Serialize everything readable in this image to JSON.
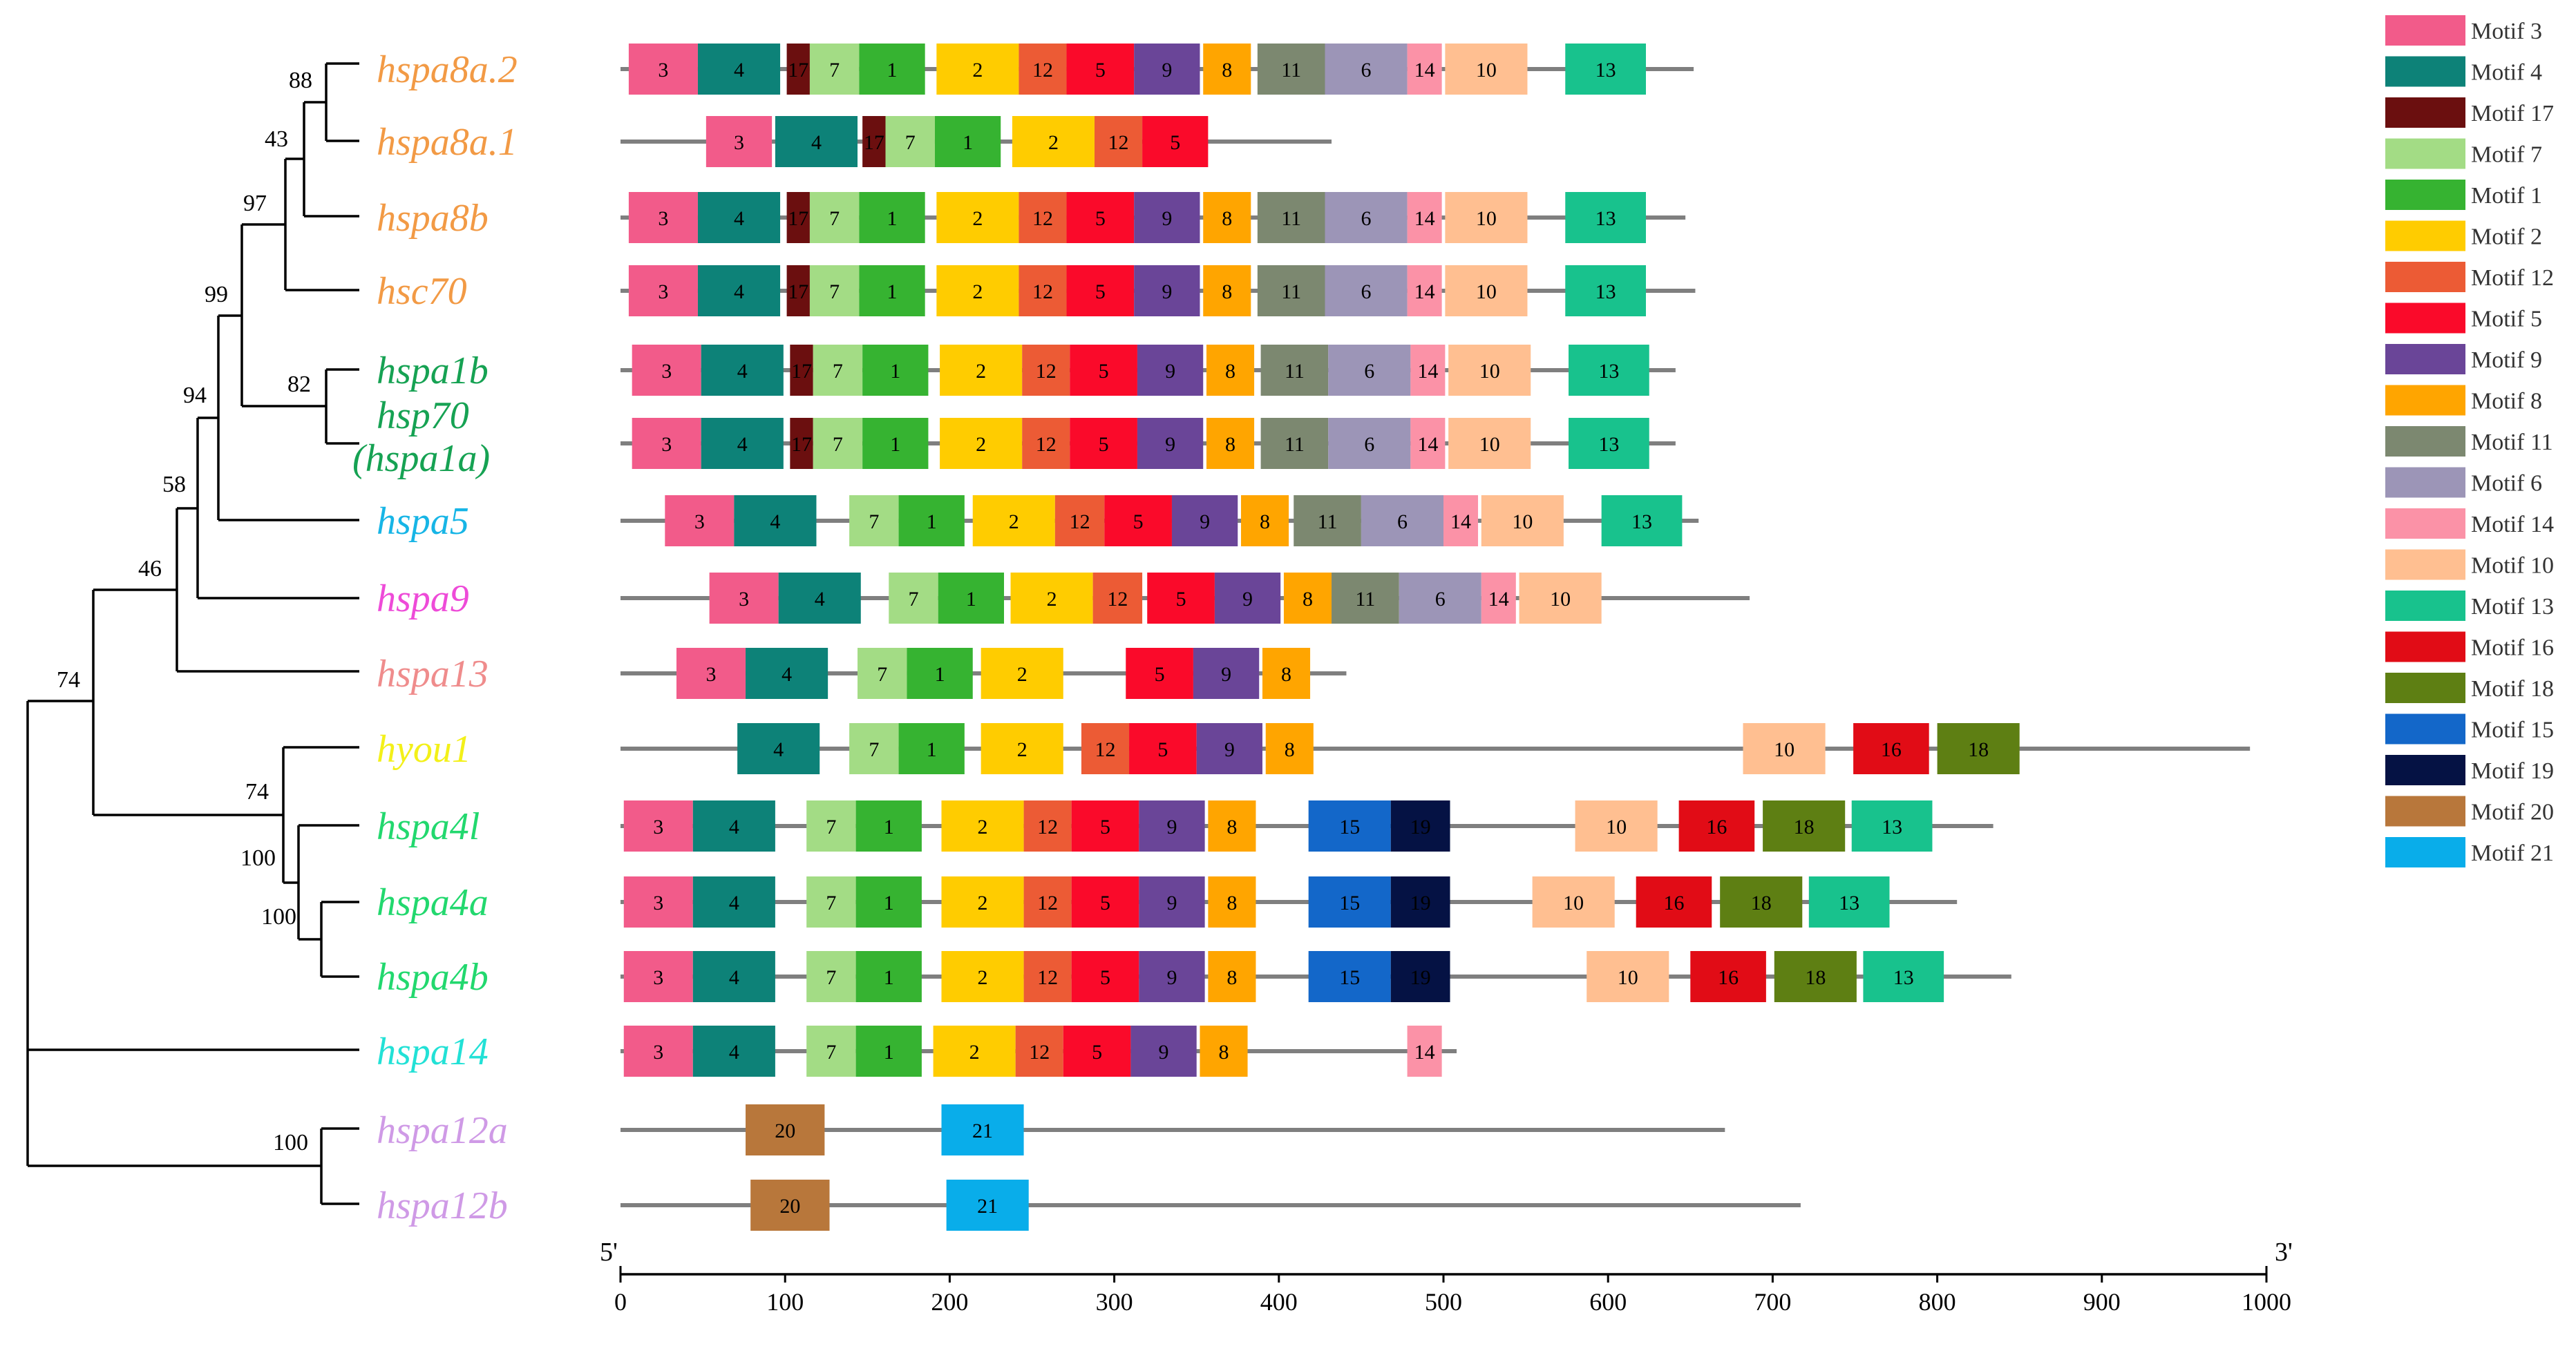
{
  "colors": {
    "Motif 3": "#F25B8A",
    "Motif 4": "#0D8278",
    "Motif 17": "#6B0F0F",
    "Motif 7": "#A3DC85",
    "Motif 1": "#36B331",
    "Motif 2": "#FFCC00",
    "Motif 12": "#EC5B35",
    "Motif 5": "#FA0A2A",
    "Motif 9": "#6A4598",
    "Motif 8": "#FFA500",
    "Motif 11": "#7C8870",
    "Motif 6": "#9C95B7",
    "Motif 14": "#FB92A7",
    "Motif 10": "#FFBF91",
    "Motif 13": "#18C28D",
    "Motif 16": "#E10C16",
    "Motif 18": "#5E7F13",
    "Motif 15": "#1367C9",
    "Motif 19": "#051244",
    "Motif 20": "#B8773B",
    "Motif 21": "#09ADEA"
  },
  "legend": [
    "Motif 3",
    "Motif 4",
    "Motif 17",
    "Motif 7",
    "Motif 1",
    "Motif 2",
    "Motif 12",
    "Motif 5",
    "Motif 9",
    "Motif 8",
    "Motif 11",
    "Motif 6",
    "Motif 14",
    "Motif 10",
    "Motif 13",
    "Motif 16",
    "Motif 18",
    "Motif 15",
    "Motif 19",
    "Motif 20",
    "Motif 21"
  ],
  "axis": {
    "min": 0,
    "max": 1000,
    "ticks": [
      0,
      100,
      200,
      300,
      400,
      500,
      600,
      700,
      800,
      900,
      1000
    ],
    "start_label": "5'",
    "end_label": "3'"
  },
  "genes": [
    {
      "name": "hspa8a.2",
      "color": "#F29A45",
      "length": 652,
      "motifs": [
        [
          3,
          5,
          47
        ],
        [
          4,
          47,
          97
        ],
        [
          17,
          101,
          115
        ],
        [
          7,
          115,
          145
        ],
        [
          1,
          145,
          185
        ],
        [
          2,
          192,
          242
        ],
        [
          12,
          242,
          271
        ],
        [
          5,
          271,
          312
        ],
        [
          9,
          312,
          352
        ],
        [
          8,
          354,
          383
        ],
        [
          11,
          387,
          428
        ],
        [
          6,
          428,
          478
        ],
        [
          14,
          478,
          499
        ],
        [
          10,
          501,
          551
        ],
        [
          13,
          574,
          623
        ]
      ]
    },
    {
      "name": "hspa8a.1",
      "color": "#F29A45",
      "length": 432,
      "motifs": [
        [
          3,
          52,
          92
        ],
        [
          4,
          94,
          144
        ],
        [
          17,
          147,
          161
        ],
        [
          7,
          161,
          191
        ],
        [
          1,
          191,
          231
        ],
        [
          2,
          238,
          288
        ],
        [
          12,
          288,
          317
        ],
        [
          5,
          317,
          357
        ]
      ]
    },
    {
      "name": "hspa8b",
      "color": "#F29A45",
      "length": 647,
      "motifs": [
        [
          3,
          5,
          47
        ],
        [
          4,
          47,
          97
        ],
        [
          17,
          101,
          115
        ],
        [
          7,
          115,
          145
        ],
        [
          1,
          145,
          185
        ],
        [
          2,
          192,
          242
        ],
        [
          12,
          242,
          271
        ],
        [
          5,
          271,
          312
        ],
        [
          9,
          312,
          352
        ],
        [
          8,
          354,
          383
        ],
        [
          11,
          387,
          428
        ],
        [
          6,
          428,
          478
        ],
        [
          14,
          478,
          499
        ],
        [
          10,
          501,
          551
        ],
        [
          13,
          574,
          623
        ]
      ]
    },
    {
      "name": "hsc70",
      "color": "#F29A45",
      "length": 653,
      "motifs": [
        [
          3,
          5,
          47
        ],
        [
          4,
          47,
          97
        ],
        [
          17,
          101,
          115
        ],
        [
          7,
          115,
          145
        ],
        [
          1,
          145,
          185
        ],
        [
          2,
          192,
          242
        ],
        [
          12,
          242,
          271
        ],
        [
          5,
          271,
          312
        ],
        [
          9,
          312,
          352
        ],
        [
          8,
          354,
          383
        ],
        [
          11,
          387,
          428
        ],
        [
          6,
          428,
          478
        ],
        [
          14,
          478,
          499
        ],
        [
          10,
          501,
          551
        ],
        [
          13,
          574,
          623
        ]
      ]
    },
    {
      "name": "hspa1b",
      "color": "#16A253",
      "length": 641,
      "motifs": [
        [
          3,
          7,
          49
        ],
        [
          4,
          49,
          99
        ],
        [
          17,
          103,
          117
        ],
        [
          7,
          117,
          147
        ],
        [
          1,
          147,
          187
        ],
        [
          2,
          194,
          244
        ],
        [
          12,
          244,
          273
        ],
        [
          5,
          273,
          314
        ],
        [
          9,
          314,
          354
        ],
        [
          8,
          356,
          385
        ],
        [
          11,
          389,
          430
        ],
        [
          6,
          430,
          480
        ],
        [
          14,
          480,
          501
        ],
        [
          10,
          503,
          553
        ],
        [
          13,
          576,
          625
        ]
      ]
    },
    {
      "name": "hsp70",
      "name2": "(hspa1a)",
      "color": "#16A253",
      "length": 641,
      "motifs": [
        [
          3,
          7,
          49
        ],
        [
          4,
          49,
          99
        ],
        [
          17,
          103,
          117
        ],
        [
          7,
          117,
          147
        ],
        [
          1,
          147,
          187
        ],
        [
          2,
          194,
          244
        ],
        [
          12,
          244,
          273
        ],
        [
          5,
          273,
          314
        ],
        [
          9,
          314,
          354
        ],
        [
          8,
          356,
          385
        ],
        [
          11,
          389,
          430
        ],
        [
          6,
          430,
          480
        ],
        [
          14,
          480,
          501
        ],
        [
          10,
          503,
          553
        ],
        [
          13,
          576,
          625
        ]
      ]
    },
    {
      "name": "hspa5",
      "color": "#17B5E6",
      "length": 655,
      "motifs": [
        [
          3,
          27,
          69
        ],
        [
          4,
          69,
          119
        ],
        [
          7,
          139,
          169
        ],
        [
          1,
          169,
          209
        ],
        [
          2,
          214,
          264
        ],
        [
          12,
          264,
          294
        ],
        [
          5,
          294,
          335
        ],
        [
          9,
          335,
          375
        ],
        [
          8,
          377,
          406
        ],
        [
          11,
          409,
          450
        ],
        [
          6,
          450,
          500
        ],
        [
          14,
          500,
          521
        ],
        [
          10,
          523,
          573
        ],
        [
          13,
          596,
          645
        ]
      ]
    },
    {
      "name": "hspa9",
      "color": "#EE4BD8",
      "length": 686,
      "motifs": [
        [
          3,
          54,
          96
        ],
        [
          4,
          96,
          146
        ],
        [
          7,
          163,
          193
        ],
        [
          1,
          193,
          233
        ],
        [
          2,
          237,
          287
        ],
        [
          12,
          287,
          317
        ],
        [
          5,
          320,
          361
        ],
        [
          9,
          361,
          401
        ],
        [
          8,
          403,
          432
        ],
        [
          11,
          432,
          473
        ],
        [
          6,
          473,
          523
        ],
        [
          14,
          523,
          544
        ],
        [
          10,
          546,
          596
        ]
      ]
    },
    {
      "name": "hspa13",
      "color": "#EF8C8C",
      "length": 441,
      "motifs": [
        [
          3,
          34,
          76
        ],
        [
          4,
          76,
          126
        ],
        [
          7,
          144,
          174
        ],
        [
          1,
          174,
          214
        ],
        [
          2,
          219,
          269
        ],
        [
          5,
          307,
          348
        ],
        [
          9,
          348,
          388
        ],
        [
          8,
          390,
          419
        ]
      ]
    },
    {
      "name": "hyou1",
      "color": "#F3F019",
      "length": 990,
      "motifs": [
        [
          4,
          71,
          121
        ],
        [
          7,
          139,
          169
        ],
        [
          1,
          169,
          209
        ],
        [
          2,
          219,
          269
        ],
        [
          12,
          280,
          309
        ],
        [
          5,
          309,
          350
        ],
        [
          9,
          350,
          390
        ],
        [
          8,
          392,
          421
        ],
        [
          10,
          682,
          732
        ],
        [
          16,
          749,
          795
        ],
        [
          18,
          800,
          850
        ]
      ]
    },
    {
      "name": "hspa4l",
      "color": "#22D86E",
      "length": 834,
      "motifs": [
        [
          3,
          2,
          44
        ],
        [
          4,
          44,
          94
        ],
        [
          7,
          113,
          143
        ],
        [
          1,
          143,
          183
        ],
        [
          2,
          195,
          245
        ],
        [
          12,
          245,
          274
        ],
        [
          5,
          274,
          315
        ],
        [
          9,
          315,
          355
        ],
        [
          8,
          357,
          386
        ],
        [
          15,
          418,
          468
        ],
        [
          19,
          468,
          504
        ],
        [
          10,
          580,
          630
        ],
        [
          16,
          643,
          689
        ],
        [
          18,
          694,
          744
        ],
        [
          13,
          748,
          797
        ]
      ]
    },
    {
      "name": "hspa4a",
      "color": "#22D86E",
      "length": 812,
      "motifs": [
        [
          3,
          2,
          44
        ],
        [
          4,
          44,
          94
        ],
        [
          7,
          113,
          143
        ],
        [
          1,
          143,
          183
        ],
        [
          2,
          195,
          245
        ],
        [
          12,
          245,
          274
        ],
        [
          5,
          274,
          315
        ],
        [
          9,
          315,
          355
        ],
        [
          8,
          357,
          386
        ],
        [
          15,
          418,
          468
        ],
        [
          19,
          468,
          504
        ],
        [
          10,
          554,
          604
        ],
        [
          16,
          617,
          663
        ],
        [
          18,
          668,
          718
        ],
        [
          13,
          722,
          771
        ]
      ]
    },
    {
      "name": "hspa4b",
      "color": "#22D86E",
      "length": 845,
      "motifs": [
        [
          3,
          2,
          44
        ],
        [
          4,
          44,
          94
        ],
        [
          7,
          113,
          143
        ],
        [
          1,
          143,
          183
        ],
        [
          2,
          195,
          245
        ],
        [
          12,
          245,
          274
        ],
        [
          5,
          274,
          315
        ],
        [
          9,
          315,
          355
        ],
        [
          8,
          357,
          386
        ],
        [
          15,
          418,
          468
        ],
        [
          19,
          468,
          504
        ],
        [
          10,
          587,
          637
        ],
        [
          16,
          650,
          696
        ],
        [
          18,
          701,
          751
        ],
        [
          13,
          755,
          804
        ]
      ]
    },
    {
      "name": "hspa14",
      "color": "#22E1D6",
      "length": 508,
      "motifs": [
        [
          3,
          2,
          44
        ],
        [
          4,
          44,
          94
        ],
        [
          7,
          113,
          143
        ],
        [
          1,
          143,
          183
        ],
        [
          2,
          190,
          240
        ],
        [
          12,
          240,
          269
        ],
        [
          5,
          269,
          310
        ],
        [
          9,
          310,
          350
        ],
        [
          8,
          352,
          381
        ],
        [
          14,
          478,
          499
        ]
      ]
    },
    {
      "name": "hspa12a",
      "color": "#CF9AE6",
      "length": 671,
      "motifs": [
        [
          20,
          76,
          124
        ],
        [
          21,
          195,
          245
        ]
      ]
    },
    {
      "name": "hspa12b",
      "color": "#CF9AE6",
      "length": 717,
      "motifs": [
        [
          20,
          79,
          127
        ],
        [
          21,
          198,
          248
        ]
      ]
    }
  ],
  "tree": {
    "bootstrap": [
      "88",
      "43",
      "97",
      "99",
      "82",
      "94",
      "58",
      "46",
      "74",
      "74",
      "100",
      "100",
      "100"
    ]
  }
}
